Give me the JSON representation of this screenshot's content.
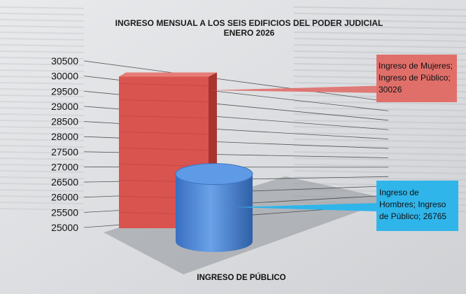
{
  "chart_data": {
    "type": "bar",
    "title": "INGRESO MENSUAL A LOS SEIS EDIFICIOS DEL PODER JUDICIAL",
    "subtitle": "ENERO 2026",
    "categories": [
      "INGRESO DE PÚBLICO"
    ],
    "xlabel": "",
    "ylabel": "",
    "ylim": [
      25000,
      30500
    ],
    "yticks": [
      "30500",
      "30000",
      "29500",
      "29000",
      "28500",
      "28000",
      "27500",
      "27000",
      "26500",
      "26000",
      "25500",
      "25000"
    ],
    "grid": true,
    "series": [
      {
        "name": "Ingreso de Mujeres",
        "values": [
          30026
        ],
        "color": "#d9534f",
        "data_label": [
          "Ingreso de Mujeres;",
          "Ingreso de Público;",
          "30026"
        ]
      },
      {
        "name": "Ingreso de Hombres",
        "values": [
          26765
        ],
        "color": "#4a88d8",
        "data_label": [
          "Ingreso  de",
          "Hombres; Ingreso",
          "de Público; 26765"
        ]
      }
    ],
    "label_colors": {
      "mujeres": "#e06f6a",
      "hombres": "#2fb5ea"
    }
  }
}
